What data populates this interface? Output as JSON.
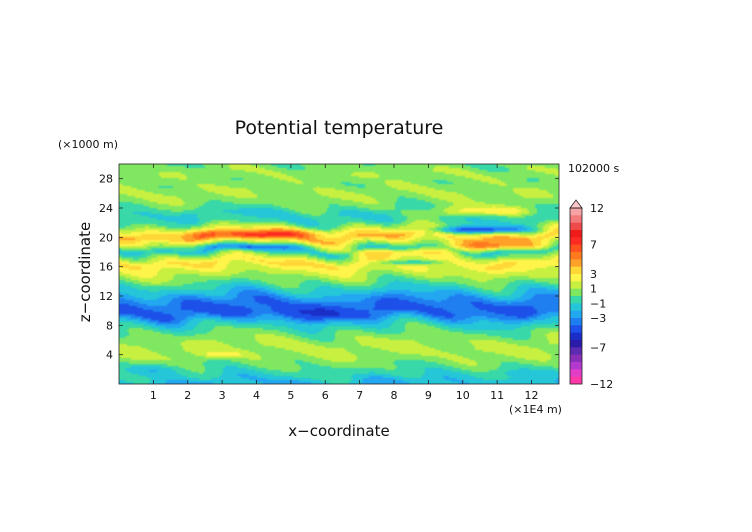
{
  "chart_data": {
    "type": "heatmap",
    "title": "Potential temperature",
    "time_label": "102000 s",
    "xlabel": "x−coordinate",
    "ylabel": "z−coordinate",
    "x_unit": "(×1E4 m)",
    "y_unit": "(×1000 m)",
    "xlim": [
      0,
      12.8
    ],
    "ylim": [
      0,
      30
    ],
    "x_ticks": [
      "1",
      "2",
      "3",
      "4",
      "5",
      "6",
      "7",
      "8",
      "9",
      "10",
      "11",
      "12"
    ],
    "y_ticks": [
      "4",
      "8",
      "12",
      "16",
      "20",
      "24",
      "28"
    ],
    "colorbar": {
      "labels": [
        "12",
        "7",
        "3",
        "1",
        "−1",
        "−3",
        "−7",
        "−12"
      ],
      "label_values": [
        12,
        7,
        3,
        1,
        -1,
        -3,
        -7,
        -12
      ],
      "levels": [
        -12,
        -11,
        -10,
        -9,
        -8,
        -7,
        -6,
        -5,
        -4,
        -3,
        -2,
        -1,
        0,
        1,
        2,
        3,
        4,
        5,
        6,
        7,
        8,
        9,
        10,
        11,
        12
      ],
      "colors": [
        "#ff3aa8",
        "#e23cc8",
        "#b23ad0",
        "#8a30b8",
        "#5a2ab0",
        "#2a1ca8",
        "#1a2fc8",
        "#1c50e8",
        "#1f7ef0",
        "#22a7f0",
        "#25c6d8",
        "#38d8a8",
        "#80e860",
        "#c8f040",
        "#fff54a",
        "#ffd838",
        "#ffa028",
        "#ff7a1e",
        "#ff5020",
        "#ff2a22",
        "#f01c1c",
        "#f04a4a",
        "#f27a7a",
        "#f5a3a3"
      ],
      "top_color": "#ffc8c8"
    },
    "bands": [
      {
        "z": 0.3,
        "value": -2.0
      },
      {
        "z": 1.2,
        "value": -0.8
      },
      {
        "z": 2.5,
        "value": 0.1
      },
      {
        "z": 3.8,
        "value": 0.9
      },
      {
        "z": 5.2,
        "value": 1.3
      },
      {
        "z": 6.5,
        "value": 0.5
      },
      {
        "z": 7.6,
        "value": -0.5
      },
      {
        "z": 8.6,
        "value": -1.8
      },
      {
        "z": 9.5,
        "value": -3.8
      },
      {
        "z": 10.4,
        "value": -4.2
      },
      {
        "z": 11.3,
        "value": -3.6
      },
      {
        "z": 12.3,
        "value": -2.1
      },
      {
        "z": 13.4,
        "value": -0.6
      },
      {
        "z": 14.5,
        "value": 0.8
      },
      {
        "z": 15.5,
        "value": 1.8
      },
      {
        "z": 16.6,
        "value": 3.2
      },
      {
        "z": 17.4,
        "value": 1.2
      },
      {
        "z": 18.3,
        "value": -1.5
      },
      {
        "z": 19.2,
        "value": 1.5
      },
      {
        "z": 20.1,
        "value": 4.0
      },
      {
        "z": 21.0,
        "value": 2.0
      },
      {
        "z": 22.0,
        "value": -0.5
      },
      {
        "z": 23.2,
        "value": -1.2
      },
      {
        "z": 24.5,
        "value": 0.4
      },
      {
        "z": 26.0,
        "value": 1.0
      },
      {
        "z": 27.5,
        "value": 0.4
      },
      {
        "z": 29.0,
        "value": 0.8
      },
      {
        "z": 30.0,
        "value": 0.2
      }
    ],
    "features": [
      {
        "x": 3.4,
        "z": 20.3,
        "rx": 1.8,
        "rz": 0.6,
        "amp": 3.0
      },
      {
        "x": 5.0,
        "z": 20.6,
        "rx": 1.5,
        "rz": 0.6,
        "amp": 2.0
      },
      {
        "x": 10.9,
        "z": 18.8,
        "rx": 1.4,
        "rz": 0.6,
        "amp": 4.0
      },
      {
        "x": 8.0,
        "z": 18.0,
        "rx": 1.5,
        "rz": 0.5,
        "amp": 3.0
      },
      {
        "x": 10.5,
        "z": 21.0,
        "rx": 1.4,
        "rz": 0.5,
        "amp": -6.0
      },
      {
        "x": 8.4,
        "z": 16.6,
        "rx": 0.9,
        "rz": 0.4,
        "amp": -4.0
      },
      {
        "x": 3.8,
        "z": 18.7,
        "rx": 1.5,
        "rz": 0.4,
        "amp": -3.0
      },
      {
        "x": 5.0,
        "z": 9.5,
        "rx": 2.5,
        "rz": 1.0,
        "amp": -1.0
      },
      {
        "x": 10.5,
        "z": 23.5,
        "rx": 1.8,
        "rz": 0.7,
        "amp": 3.0
      },
      {
        "x": 3.0,
        "z": 4.0,
        "rx": 0.6,
        "rz": 0.4,
        "amp": 2.0
      },
      {
        "x": 1.0,
        "z": 2.0,
        "rx": 1.0,
        "rz": 0.8,
        "amp": -1.5
      },
      {
        "x": 11.5,
        "z": 1.5,
        "rx": 1.2,
        "rz": 0.6,
        "amp": -1.0
      }
    ]
  }
}
